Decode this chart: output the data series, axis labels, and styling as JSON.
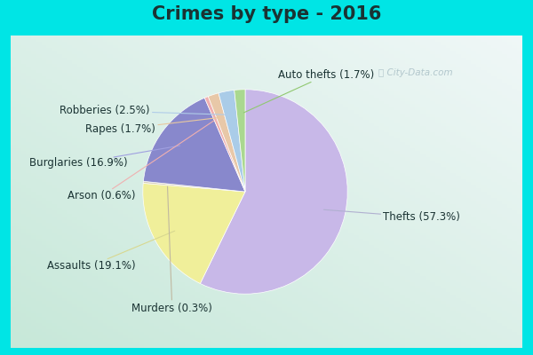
{
  "title": "Crimes by type - 2016",
  "slices": [
    {
      "label": "Thefts (57.3%)",
      "pct": 57.3,
      "color": "#c8b8e8",
      "side": "right"
    },
    {
      "label": "Assaults (19.1%)",
      "pct": 19.1,
      "color": "#f0ef9a",
      "side": "left"
    },
    {
      "label": "Murders (0.3%)",
      "pct": 0.3,
      "color": "#d8d0b8",
      "side": "left"
    },
    {
      "label": "Burglaries (16.9%)",
      "pct": 16.9,
      "color": "#8888cc",
      "side": "left"
    },
    {
      "label": "Arson (0.6%)",
      "pct": 0.6,
      "color": "#f0b0b0",
      "side": "left"
    },
    {
      "label": "Rapes (1.7%)",
      "pct": 1.7,
      "color": "#e8c8a8",
      "side": "left"
    },
    {
      "label": "Robberies (2.5%)",
      "pct": 2.5,
      "color": "#aacce8",
      "side": "left"
    },
    {
      "label": "Auto thefts (1.7%)",
      "pct": 1.7,
      "color": "#aad890",
      "side": "right"
    }
  ],
  "background_outer": "#00e5e5",
  "background_inner_top": "#f0f8f8",
  "background_inner_bottom": "#c8e8d8",
  "title_color": "#1a3333",
  "label_color": "#1a3333",
  "title_fontsize": 15,
  "label_fontsize": 8.5,
  "watermark": "ⓘ City-Data.com",
  "startangle": 90
}
